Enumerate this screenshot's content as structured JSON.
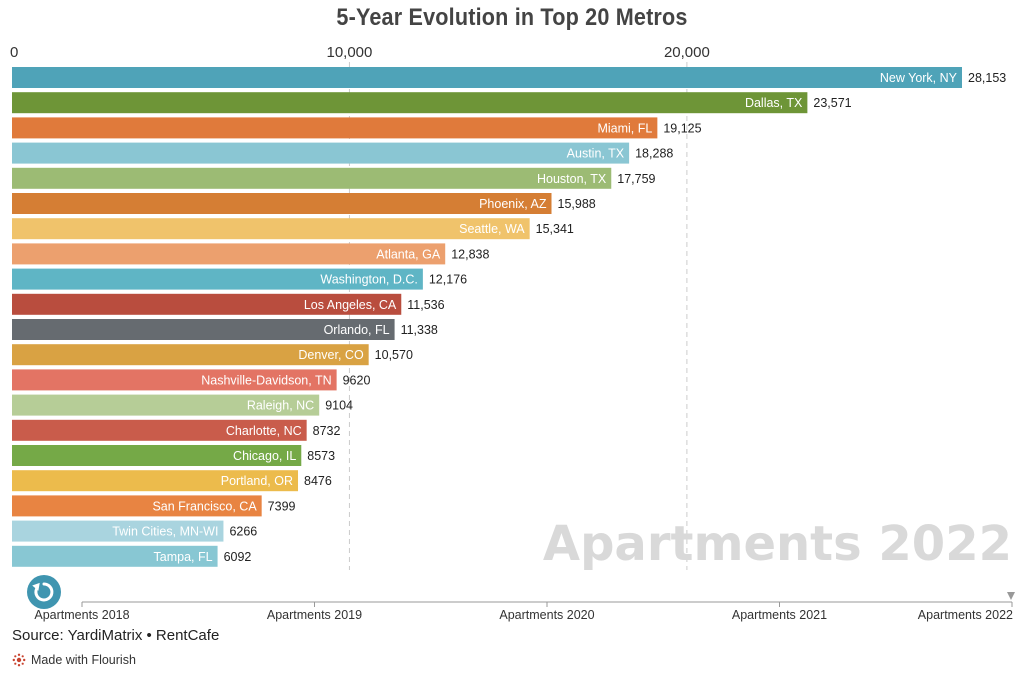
{
  "title": "5-Year Evolution in Top 20 Metros",
  "watermark": "Apartments 2022",
  "source": "Source: YardiMatrix • RentCafe",
  "made_with": "Made with Flourish",
  "replay_icon": "replay-icon",
  "timeline": {
    "labels": [
      "Apartments 2018",
      "Apartments 2019",
      "Apartments 2020",
      "Apartments 2021",
      "Apartments 2022"
    ],
    "current": 4
  },
  "chart_data": {
    "type": "bar",
    "orientation": "horizontal",
    "title": "5-Year Evolution in Top 20 Metros",
    "xlim": [
      0,
      28153
    ],
    "xticks": [
      0,
      10000,
      20000
    ],
    "xtick_labels": [
      "0",
      "10,000",
      "20,000"
    ],
    "grid": true,
    "categories": [
      "New York, NY",
      "Dallas, TX",
      "Miami, FL",
      "Austin, TX",
      "Houston, TX",
      "Phoenix, AZ",
      "Seattle, WA",
      "Atlanta, GA",
      "Washington, D.C.",
      "Los Angeles, CA",
      "Orlando, FL",
      "Denver, CO",
      "Nashville-Davidson, TN",
      "Raleigh, NC",
      "Charlotte, NC",
      "Chicago, IL",
      "Portland, OR",
      "San Francisco, CA",
      "Twin Cities, MN-WI",
      "Tampa, FL"
    ],
    "values": [
      28153,
      23571,
      19125,
      18288,
      17759,
      15988,
      15341,
      12838,
      12176,
      11536,
      11338,
      10570,
      9620,
      9104,
      8732,
      8573,
      8476,
      7399,
      6266,
      6092
    ],
    "value_labels": [
      "28,153",
      "23,571",
      "19,125",
      "18,288",
      "17,759",
      "15,988",
      "15,341",
      "12,838",
      "12,176",
      "11,536",
      "11,338",
      "10,570",
      "9620",
      "9104",
      "8732",
      "8573",
      "8476",
      "7399",
      "6266",
      "6092"
    ],
    "colors": [
      "#4fa3b8",
      "#6e9537",
      "#e07a3b",
      "#8ac6d3",
      "#9cbb74",
      "#d57e34",
      "#f0c36b",
      "#eca06e",
      "#5fb5c5",
      "#b94d3e",
      "#666b70",
      "#d9a243",
      "#e37464",
      "#b6cd97",
      "#c95c4b",
      "#75a947",
      "#ecbb4c",
      "#e88442",
      "#a9d4df",
      "#88c7d3"
    ]
  }
}
